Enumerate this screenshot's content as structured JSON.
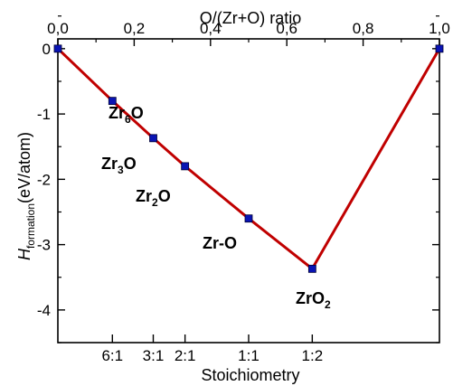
{
  "chart_data": {
    "type": "line",
    "x_top_label": "O/(Zr+O) ratio",
    "x_bottom_label": "Stoichiometry",
    "y_label_main": "H",
    "y_label_sub": "formation",
    "y_label_unit": "(eV/atom)",
    "xlim": [
      0,
      1
    ],
    "ylim": [
      -4.5,
      0.15
    ],
    "top_ticks": [
      {
        "value": 0.0,
        "label": "0,0"
      },
      {
        "value": 0.2,
        "label": "0,2"
      },
      {
        "value": 0.4,
        "label": "0,4"
      },
      {
        "value": 0.6,
        "label": "0,6"
      },
      {
        "value": 0.8,
        "label": "0,8"
      },
      {
        "value": 1.0,
        "label": "1,0"
      }
    ],
    "y_ticks": [
      {
        "value": 0,
        "label": "0"
      },
      {
        "value": -1,
        "label": "-1"
      },
      {
        "value": -2,
        "label": "-2"
      },
      {
        "value": -3,
        "label": "-3"
      },
      {
        "value": -4,
        "label": "-4"
      }
    ],
    "bottom_ticks": [
      {
        "value": 0.1429,
        "label": "6:1"
      },
      {
        "value": 0.25,
        "label": "3:1"
      },
      {
        "value": 0.3333,
        "label": "2:1"
      },
      {
        "value": 0.5,
        "label": "1:1"
      },
      {
        "value": 0.6667,
        "label": "1:2"
      }
    ],
    "series": [
      {
        "line_color": "#c00000",
        "marker_color": "#0a14b4",
        "points": [
          {
            "x": 0.0,
            "y": 0.0
          },
          {
            "x": 0.1429,
            "y": -0.8
          },
          {
            "x": 0.25,
            "y": -1.37
          },
          {
            "x": 0.3333,
            "y": -1.8
          },
          {
            "x": 0.5,
            "y": -2.6
          },
          {
            "x": 0.6667,
            "y": -3.37
          },
          {
            "x": 1.0,
            "y": 0.0
          }
        ]
      }
    ],
    "annotations": [
      {
        "base": "Zr",
        "sub": "6",
        "tail": "O"
      },
      {
        "base": "Zr",
        "sub": "3",
        "tail": "O"
      },
      {
        "base": "Zr",
        "sub": "2",
        "tail": "O"
      },
      {
        "base": "Zr-O",
        "sub": "",
        "tail": ""
      },
      {
        "base": "ZrO",
        "sub": "2",
        "tail": ""
      }
    ]
  }
}
